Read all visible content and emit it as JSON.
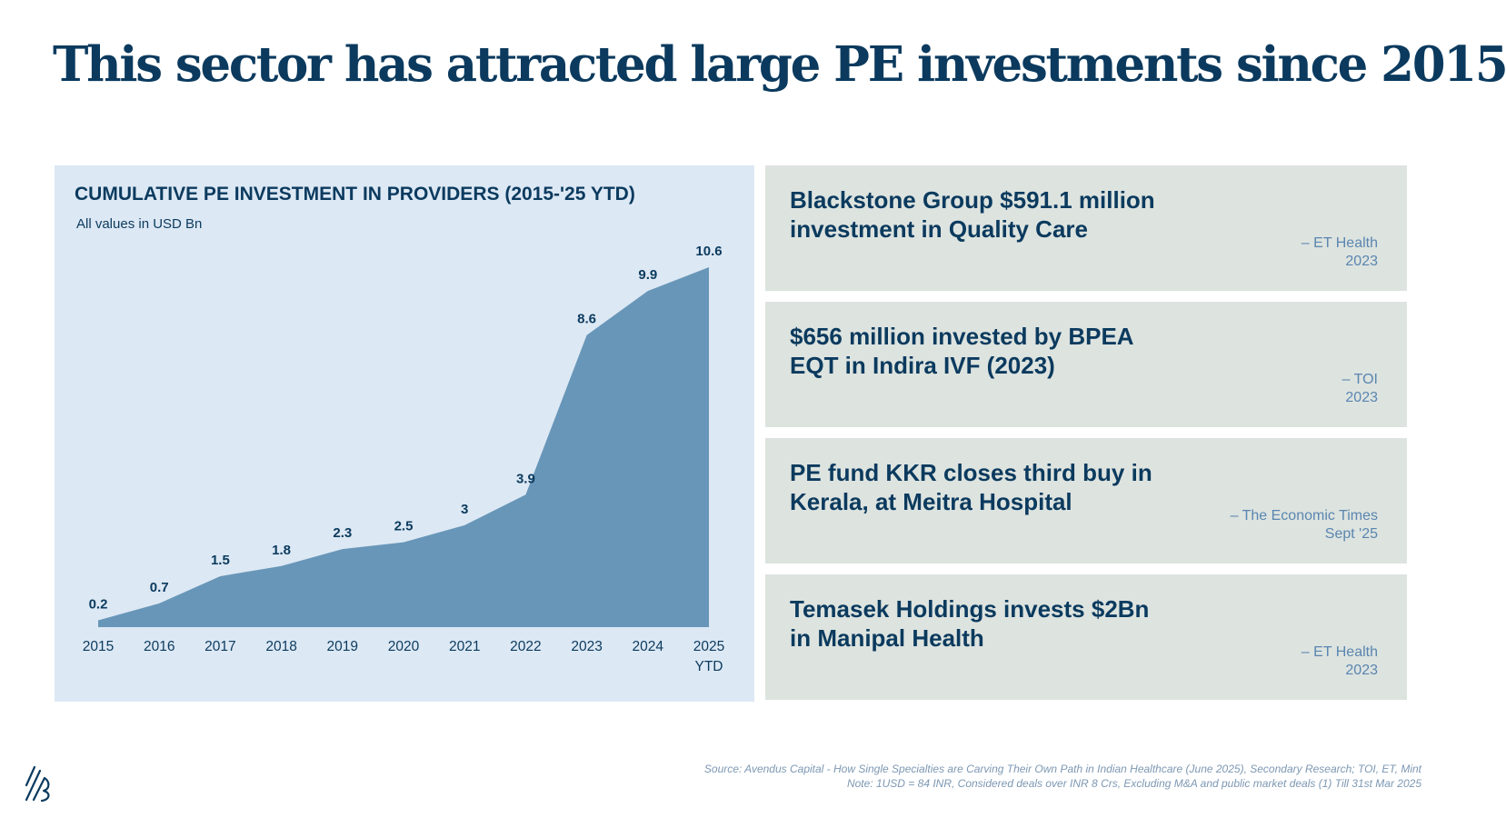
{
  "page": {
    "title": "This sector has attracted large PE investments since 2015"
  },
  "chart_data": {
    "type": "area",
    "title": "CUMULATIVE PE INVESTMENT IN PROVIDERS (2015-'25 YTD)",
    "subtitle": "All values in USD Bn",
    "categories": [
      [
        "2015"
      ],
      [
        "2016"
      ],
      [
        "2017"
      ],
      [
        "2018"
      ],
      [
        "2019"
      ],
      [
        "2020"
      ],
      [
        "2021"
      ],
      [
        "2022"
      ],
      [
        "2023"
      ],
      [
        "2024"
      ],
      [
        "2025",
        "YTD"
      ]
    ],
    "values": [
      0.2,
      0.7,
      1.5,
      1.8,
      2.3,
      2.5,
      3,
      3.9,
      8.6,
      9.9,
      10.6
    ],
    "ylim": [
      0,
      10.6
    ],
    "xlabel": "",
    "ylabel": "",
    "grid": false,
    "color": "#6896b8"
  },
  "cards": [
    {
      "headline": "Blackstone Group $591.1 million investment in Quality Care",
      "source": "– ET Health",
      "date": "2023"
    },
    {
      "headline": "$656 million invested by BPEA EQT in Indira IVF (2023)",
      "source": "– TOI",
      "date": "2023"
    },
    {
      "headline": "PE fund KKR closes third buy in Kerala, at Meitra Hospital",
      "source": "– The Economic Times",
      "date": "Sept '25"
    },
    {
      "headline": "Temasek Holdings invests $2Bn in Manipal Health",
      "source": "– ET Health",
      "date": "2023"
    }
  ],
  "footer": {
    "source": "Source: Avendus Capital - How Single Specialties are Carving Their Own Path in Indian Healthcare (June 2025), Secondary Research; TOI, ET, Mint",
    "note": "Note: 1USD = 84 INR, Considered deals over INR 8 Crs, Excluding M&A and public market deals (1) Till 31st Mar 2025"
  },
  "colors": {
    "navy": "#0b3a5e",
    "chart_panel": "#dce8f4",
    "card_bg": "#dde3df",
    "source_text": "#5a86b0"
  }
}
